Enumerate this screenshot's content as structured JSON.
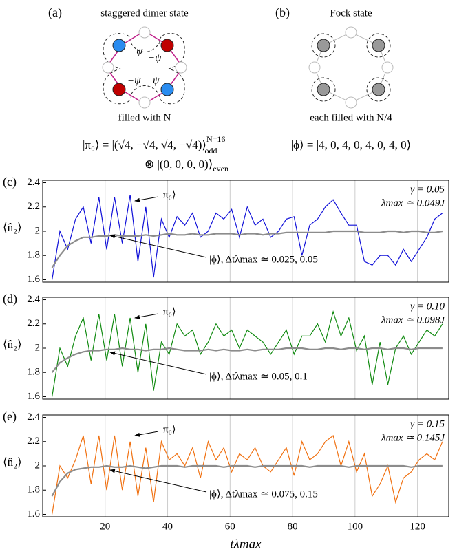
{
  "diagrams": {
    "a": {
      "label": "(a)",
      "title": "staggered dimer state",
      "psi": [
        "ψ",
        "−ψ",
        "−ψ",
        "ψ"
      ],
      "caption": "filled with N",
      "eq1": "|π₀⟩ = |(√4, −√4, √4, −√4)⟩",
      "eq1_sup": "N=16",
      "eq1_sub": "odd",
      "eq2": "⊗ |(0, 0, 0, 0)⟩",
      "eq2_sub": "even"
    },
    "b": {
      "label": "(b)",
      "title": "Fock state",
      "caption": "each filled with N/4",
      "eq": "|ϕ⟩ = |4, 0, 4, 0, 4, 0, 4, 0⟩"
    }
  },
  "chart_data": [
    {
      "type": "line",
      "panel_label": "(c)",
      "ylabel": "⟨n̂₂⟩",
      "gamma": "γ = 0.05",
      "lambda": "λmax ≃ 0.049J",
      "x": [
        3,
        5.5,
        8,
        10.5,
        13,
        15.5,
        18,
        20.5,
        23,
        25.5,
        28,
        30.5,
        33,
        35.5,
        38,
        40.5,
        43,
        45.5,
        48,
        50.5,
        53,
        55.5,
        58,
        60.5,
        63,
        65.5,
        68,
        70.5,
        73,
        75.5,
        78,
        80.5,
        83,
        85.5,
        88,
        90.5,
        93,
        95.5,
        98,
        100.5,
        103,
        105.5,
        108,
        110.5,
        113,
        115.5,
        118,
        120.5,
        123,
        125.5,
        128
      ],
      "series": [
        {
          "name": "|π₀⟩",
          "color": "#1010d8",
          "values": [
            1.6,
            2.0,
            1.85,
            2.1,
            2.2,
            1.9,
            2.28,
            1.85,
            2.28,
            1.9,
            2.3,
            1.75,
            2.2,
            1.62,
            2.1,
            1.95,
            2.12,
            2.05,
            2.15,
            1.95,
            2.0,
            2.15,
            2.1,
            2.18,
            1.95,
            2.2,
            2.05,
            2.1,
            1.95,
            2.0,
            2.1,
            2.12,
            1.8,
            2.05,
            2.1,
            2.2,
            2.26,
            2.15,
            2.05,
            2.05,
            1.75,
            1.72,
            1.8,
            1.8,
            1.72,
            1.85,
            1.75,
            1.85,
            1.95,
            2.1,
            2.15
          ]
        },
        {
          "name": "|ϕ⟩, Δtλmax ≃ 0.025, 0.05",
          "color": "#8c8c8c",
          "values": [
            1.7,
            1.8,
            1.88,
            1.92,
            1.95,
            1.95,
            1.96,
            1.96,
            1.97,
            1.96,
            1.96,
            1.96,
            1.97,
            1.96,
            1.97,
            1.98,
            1.97,
            1.97,
            1.98,
            1.97,
            1.97,
            1.98,
            1.98,
            1.98,
            1.97,
            1.98,
            1.98,
            1.97,
            1.98,
            1.98,
            1.99,
            1.99,
            1.99,
            1.99,
            1.99,
            1.99,
            2.0,
            2.0,
            2.0,
            2.0,
            1.99,
            1.99,
            1.99,
            2.0,
            2.0,
            1.99,
            2.0,
            2.0,
            1.99,
            1.99,
            2.0
          ]
        }
      ],
      "xlim": [
        0,
        130
      ],
      "xticks": [
        20,
        40,
        60,
        80,
        100,
        120
      ],
      "ylim": [
        1.58,
        2.42
      ],
      "yticks": [
        1.6,
        1.8,
        2,
        2.2,
        2.4
      ]
    },
    {
      "type": "line",
      "panel_label": "(d)",
      "ylabel": "⟨n̂₂⟩",
      "gamma": "γ = 0.10",
      "lambda": "λmax ≃ 0.098J",
      "x": [
        3,
        5.5,
        8,
        10.5,
        13,
        15.5,
        18,
        20.5,
        23,
        25.5,
        28,
        30.5,
        33,
        35.5,
        38,
        40.5,
        43,
        45.5,
        48,
        50.5,
        53,
        55.5,
        58,
        60.5,
        63,
        65.5,
        68,
        70.5,
        73,
        75.5,
        78,
        80.5,
        83,
        85.5,
        88,
        90.5,
        93,
        95.5,
        98,
        100.5,
        103,
        105.5,
        108,
        110.5,
        113,
        115.5,
        118,
        120.5,
        123,
        125.5,
        128
      ],
      "series": [
        {
          "name": "|π₀⟩",
          "color": "#108a10",
          "values": [
            1.6,
            2.0,
            1.85,
            2.1,
            2.25,
            1.9,
            2.28,
            1.9,
            2.28,
            1.85,
            2.25,
            1.8,
            2.2,
            1.65,
            2.05,
            1.95,
            2.2,
            2.1,
            2.15,
            1.95,
            2.05,
            2.2,
            2.1,
            2.15,
            2.0,
            2.15,
            2.1,
            2.05,
            1.95,
            2.05,
            2.15,
            1.95,
            2.1,
            2.1,
            2.2,
            2.05,
            2.3,
            2.1,
            2.25,
            1.98,
            2.1,
            1.7,
            2.05,
            1.7,
            2.0,
            2.1,
            1.95,
            2.05,
            2.15,
            2.1,
            2.2
          ]
        },
        {
          "name": "|ϕ⟩, Δtλmax ≃ 0.05, 0.1",
          "color": "#8c8c8c",
          "values": [
            1.8,
            1.88,
            1.92,
            1.95,
            1.97,
            1.98,
            1.98,
            1.99,
            1.99,
            2.0,
            1.99,
            1.99,
            1.98,
            1.99,
            1.99,
            2.0,
            1.99,
            1.98,
            1.98,
            1.98,
            1.99,
            1.98,
            1.99,
            1.98,
            1.98,
            1.99,
            1.98,
            1.99,
            1.99,
            1.99,
            2.0,
            2.0,
            2.0,
            1.99,
            1.99,
            2.0,
            2.0,
            1.99,
            2.0,
            2.0,
            1.99,
            2.0,
            2.0,
            1.99,
            2.0,
            2.0,
            1.99,
            2.0,
            2.0,
            2.0,
            2.0
          ]
        }
      ],
      "xlim": [
        0,
        130
      ],
      "xticks": [
        20,
        40,
        60,
        80,
        100,
        120
      ],
      "ylim": [
        1.58,
        2.42
      ],
      "yticks": [
        1.6,
        1.8,
        2,
        2.2,
        2.4
      ]
    },
    {
      "type": "line",
      "panel_label": "(e)",
      "ylabel": "⟨n̂₂⟩",
      "gamma": "γ = 0.15",
      "lambda": "λmax ≃ 0.145J",
      "xlabel": "tλmax",
      "x": [
        3,
        5.5,
        8,
        10.5,
        13,
        15.5,
        18,
        20.5,
        23,
        25.5,
        28,
        30.5,
        33,
        35.5,
        38,
        40.5,
        43,
        45.5,
        48,
        50.5,
        53,
        55.5,
        58,
        60.5,
        63,
        65.5,
        68,
        70.5,
        73,
        75.5,
        78,
        80.5,
        83,
        85.5,
        88,
        90.5,
        93,
        95.5,
        98,
        100.5,
        103,
        105.5,
        108,
        110.5,
        113,
        115.5,
        118,
        120.5,
        123,
        125.5,
        128
      ],
      "series": [
        {
          "name": "|π₀⟩",
          "color": "#f07010",
          "values": [
            1.6,
            2.0,
            1.9,
            2.05,
            2.25,
            1.85,
            2.25,
            1.8,
            2.25,
            1.8,
            2.2,
            1.75,
            2.15,
            1.7,
            2.2,
            2.05,
            2.1,
            2.0,
            2.15,
            1.9,
            2.2,
            2.05,
            2.15,
            1.95,
            2.1,
            2.05,
            2.15,
            2.0,
            1.95,
            2.05,
            2.15,
            1.92,
            2.2,
            2.05,
            2.1,
            2.2,
            2.25,
            2.0,
            2.2,
            1.95,
            2.1,
            1.75,
            1.85,
            2.0,
            1.7,
            1.9,
            1.95,
            2.05,
            2.1,
            2.05,
            2.2
          ]
        },
        {
          "name": "|ϕ⟩, Δtλmax ≃ 0.075, 0.15",
          "color": "#8c8c8c",
          "values": [
            1.75,
            1.87,
            1.94,
            1.97,
            1.98,
            1.99,
            1.99,
            2.0,
            1.99,
            1.99,
            2.0,
            1.99,
            1.98,
            1.99,
            2.0,
            2.0,
            2.0,
            1.99,
            2.0,
            2.0,
            2.0,
            2.0,
            1.99,
            2.0,
            2.0,
            2.0,
            1.99,
            2.0,
            2.0,
            2.0,
            2.0,
            2.0,
            2.0,
            1.99,
            2.0,
            2.0,
            2.0,
            2.0,
            1.99,
            2.0,
            2.0,
            2.0,
            2.0,
            2.0,
            2.0,
            2.0,
            1.99,
            2.0,
            2.0,
            2.0,
            2.0
          ]
        }
      ],
      "xlim": [
        0,
        130
      ],
      "xticks": [
        20,
        40,
        60,
        80,
        100,
        120
      ],
      "ylim": [
        1.58,
        2.42
      ],
      "yticks": [
        1.6,
        1.8,
        2,
        2.2,
        2.4
      ]
    }
  ]
}
